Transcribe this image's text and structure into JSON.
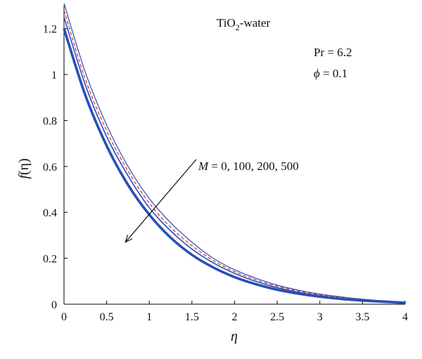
{
  "chart_data": {
    "type": "line",
    "title": "",
    "xlabel": "η",
    "ylabel_main": "f",
    "ylabel_arg": "(η)",
    "xlim": [
      0,
      4
    ],
    "ylim": [
      0,
      1.3
    ],
    "x_ticks": [
      0,
      0.5,
      1,
      1.5,
      2,
      2.5,
      3,
      3.5,
      4
    ],
    "x_tick_labels": [
      "0",
      "0.5",
      "1",
      "1.5",
      "2",
      "2.5",
      "3",
      "3.5",
      "4"
    ],
    "y_ticks": [
      0,
      0.2,
      0.4,
      0.6,
      0.8,
      1.0,
      1.2
    ],
    "y_tick_labels": [
      "0",
      "0.2",
      "0.4",
      "0.6",
      "0.8",
      "1",
      "1.2"
    ],
    "grid": false,
    "annotations": {
      "fluid_main": "TiO",
      "fluid_sub": "2",
      "fluid_rest": "-water",
      "pr_label": "Pr = 6.2",
      "phi_symbol": "ϕ",
      "phi_rest": " = 0.1",
      "m_symbol": "M",
      "m_rest": " = 0, 100, 200, 500",
      "arrow_from": {
        "x": 1.55,
        "y": 0.63
      },
      "arrow_to": {
        "x": 0.72,
        "y": 0.27
      }
    },
    "series": [
      {
        "style": "solid-thin",
        "color": "#2a4fb5",
        "x": [
          0,
          0.25,
          0.5,
          0.75,
          1.0,
          1.25,
          1.5,
          1.75,
          2.0,
          2.25,
          2.5,
          2.75,
          3.0,
          3.25,
          3.5,
          3.75,
          4.0
        ],
        "values": [
          1.31,
          1.01,
          0.78,
          0.6,
          0.46,
          0.355,
          0.27,
          0.2,
          0.15,
          0.113,
          0.083,
          0.061,
          0.044,
          0.032,
          0.022,
          0.015,
          0.01
        ]
      },
      {
        "style": "dashed",
        "color": "#d8282c",
        "x": [
          0,
          0.25,
          0.5,
          0.75,
          1.0,
          1.25,
          1.5,
          1.75,
          2.0,
          2.25,
          2.5,
          2.75,
          3.0,
          3.25,
          3.5,
          3.75,
          4.0
        ],
        "values": [
          1.28,
          0.98,
          0.755,
          0.58,
          0.44,
          0.335,
          0.255,
          0.19,
          0.142,
          0.106,
          0.078,
          0.057,
          0.041,
          0.029,
          0.02,
          0.013,
          0.008
        ]
      },
      {
        "style": "solid-medium",
        "color": "#2a4fb5",
        "x": [
          0,
          0.25,
          0.5,
          0.75,
          1.0,
          1.25,
          1.5,
          1.75,
          2.0,
          2.25,
          2.5,
          2.75,
          3.0,
          3.25,
          3.5,
          3.75,
          4.0
        ],
        "values": [
          1.25,
          0.955,
          0.73,
          0.56,
          0.42,
          0.32,
          0.24,
          0.18,
          0.134,
          0.099,
          0.072,
          0.052,
          0.037,
          0.026,
          0.018,
          0.012,
          0.007
        ]
      },
      {
        "style": "solid-thick",
        "color": "#2a4fb5",
        "x": [
          0,
          0.25,
          0.5,
          0.75,
          1.0,
          1.25,
          1.5,
          1.75,
          2.0,
          2.25,
          2.5,
          2.75,
          3.0,
          3.25,
          3.5,
          3.75,
          4.0
        ],
        "values": [
          1.2,
          0.91,
          0.69,
          0.52,
          0.39,
          0.29,
          0.215,
          0.16,
          0.118,
          0.087,
          0.063,
          0.046,
          0.033,
          0.023,
          0.016,
          0.011,
          0.006
        ]
      }
    ]
  }
}
